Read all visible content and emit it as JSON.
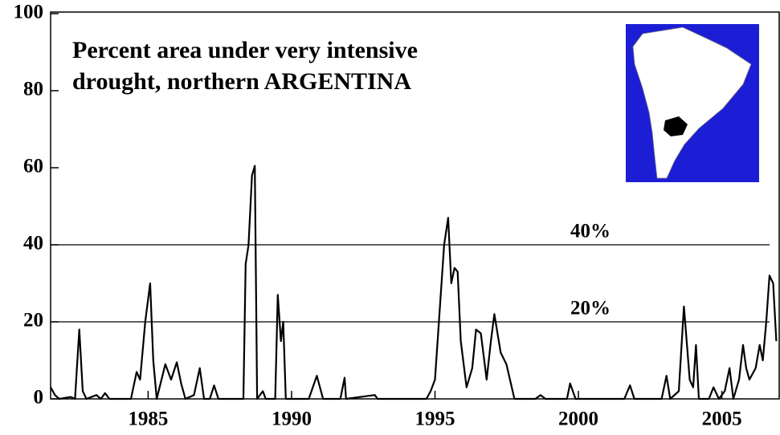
{
  "chart_data": {
    "type": "line",
    "title_lines": [
      "Percent area under very intensive",
      "drought, northern ARGENTINA"
    ],
    "x": [
      1981.6,
      1981.75,
      1981.9,
      1982.3,
      1982.45,
      1982.6,
      1982.72,
      1982.85,
      1983.2,
      1983.35,
      1983.5,
      1983.65,
      1984.4,
      1984.6,
      1984.72,
      1984.9,
      1985.07,
      1985.18,
      1985.3,
      1985.6,
      1985.8,
      1986.0,
      1986.15,
      1986.3,
      1986.6,
      1986.8,
      1986.95,
      1987.15,
      1987.3,
      1987.45,
      1988.32,
      1988.4,
      1988.5,
      1988.62,
      1988.72,
      1988.8,
      1989.0,
      1989.1,
      1989.43,
      1989.52,
      1989.63,
      1989.71,
      1989.8,
      1990.6,
      1990.88,
      1991.1,
      1991.7,
      1991.85,
      1991.9,
      1992.9,
      1993.0,
      1994.7,
      1994.85,
      1995.0,
      1995.32,
      1995.46,
      1995.57,
      1995.68,
      1995.79,
      1995.9,
      1996.1,
      1996.3,
      1996.43,
      1996.6,
      1996.8,
      1996.95,
      1997.07,
      1997.29,
      1997.49,
      1997.77,
      1998.5,
      1998.68,
      1998.85,
      1999.6,
      1999.71,
      1999.9,
      2001.6,
      2001.8,
      2001.95,
      2002.9,
      2003.07,
      2003.2,
      2003.5,
      2003.68,
      2003.88,
      2004.0,
      2004.1,
      2004.2,
      2004.55,
      2004.71,
      2004.9,
      2005.1,
      2005.27,
      2005.4,
      2005.6,
      2005.74,
      2005.85,
      2005.96,
      2006.18,
      2006.32,
      2006.43,
      2006.55,
      2006.66,
      2006.79,
      2006.9
    ],
    "values": [
      3,
      1,
      0,
      0.5,
      0,
      18,
      2,
      0,
      1,
      0,
      1.5,
      0,
      0,
      7,
      5,
      20,
      30,
      10,
      0,
      9,
      5,
      9.5,
      4,
      0,
      1,
      8,
      0,
      0,
      3.5,
      0,
      0,
      35,
      40,
      58,
      60.5,
      0,
      2,
      0,
      0,
      27,
      15,
      20,
      0,
      0,
      6,
      0,
      0,
      5.5,
      0,
      1,
      0,
      0,
      2,
      5,
      40,
      47,
      30,
      34,
      33,
      15,
      3,
      8,
      18,
      17,
      5,
      15,
      22,
      12,
      9,
      0,
      0,
      1,
      0,
      0,
      4,
      0,
      0,
      3.5,
      0,
      0,
      6,
      0,
      2,
      24,
      5,
      3,
      14,
      0,
      0,
      3,
      0,
      2,
      8,
      0,
      5,
      14,
      8,
      5,
      8,
      14,
      10,
      20,
      32,
      30,
      15
    ],
    "color": "#000000",
    "xlim": [
      1981.6,
      2007.0
    ],
    "xticks": [
      1985,
      1990,
      1995,
      2000,
      2005
    ],
    "ylim": [
      0,
      100
    ],
    "yticks": [
      0,
      20,
      40,
      60,
      80,
      100
    ],
    "reference_lines": [
      {
        "value": 40,
        "label": "40%"
      },
      {
        "value": 20,
        "label": "20%"
      }
    ]
  }
}
